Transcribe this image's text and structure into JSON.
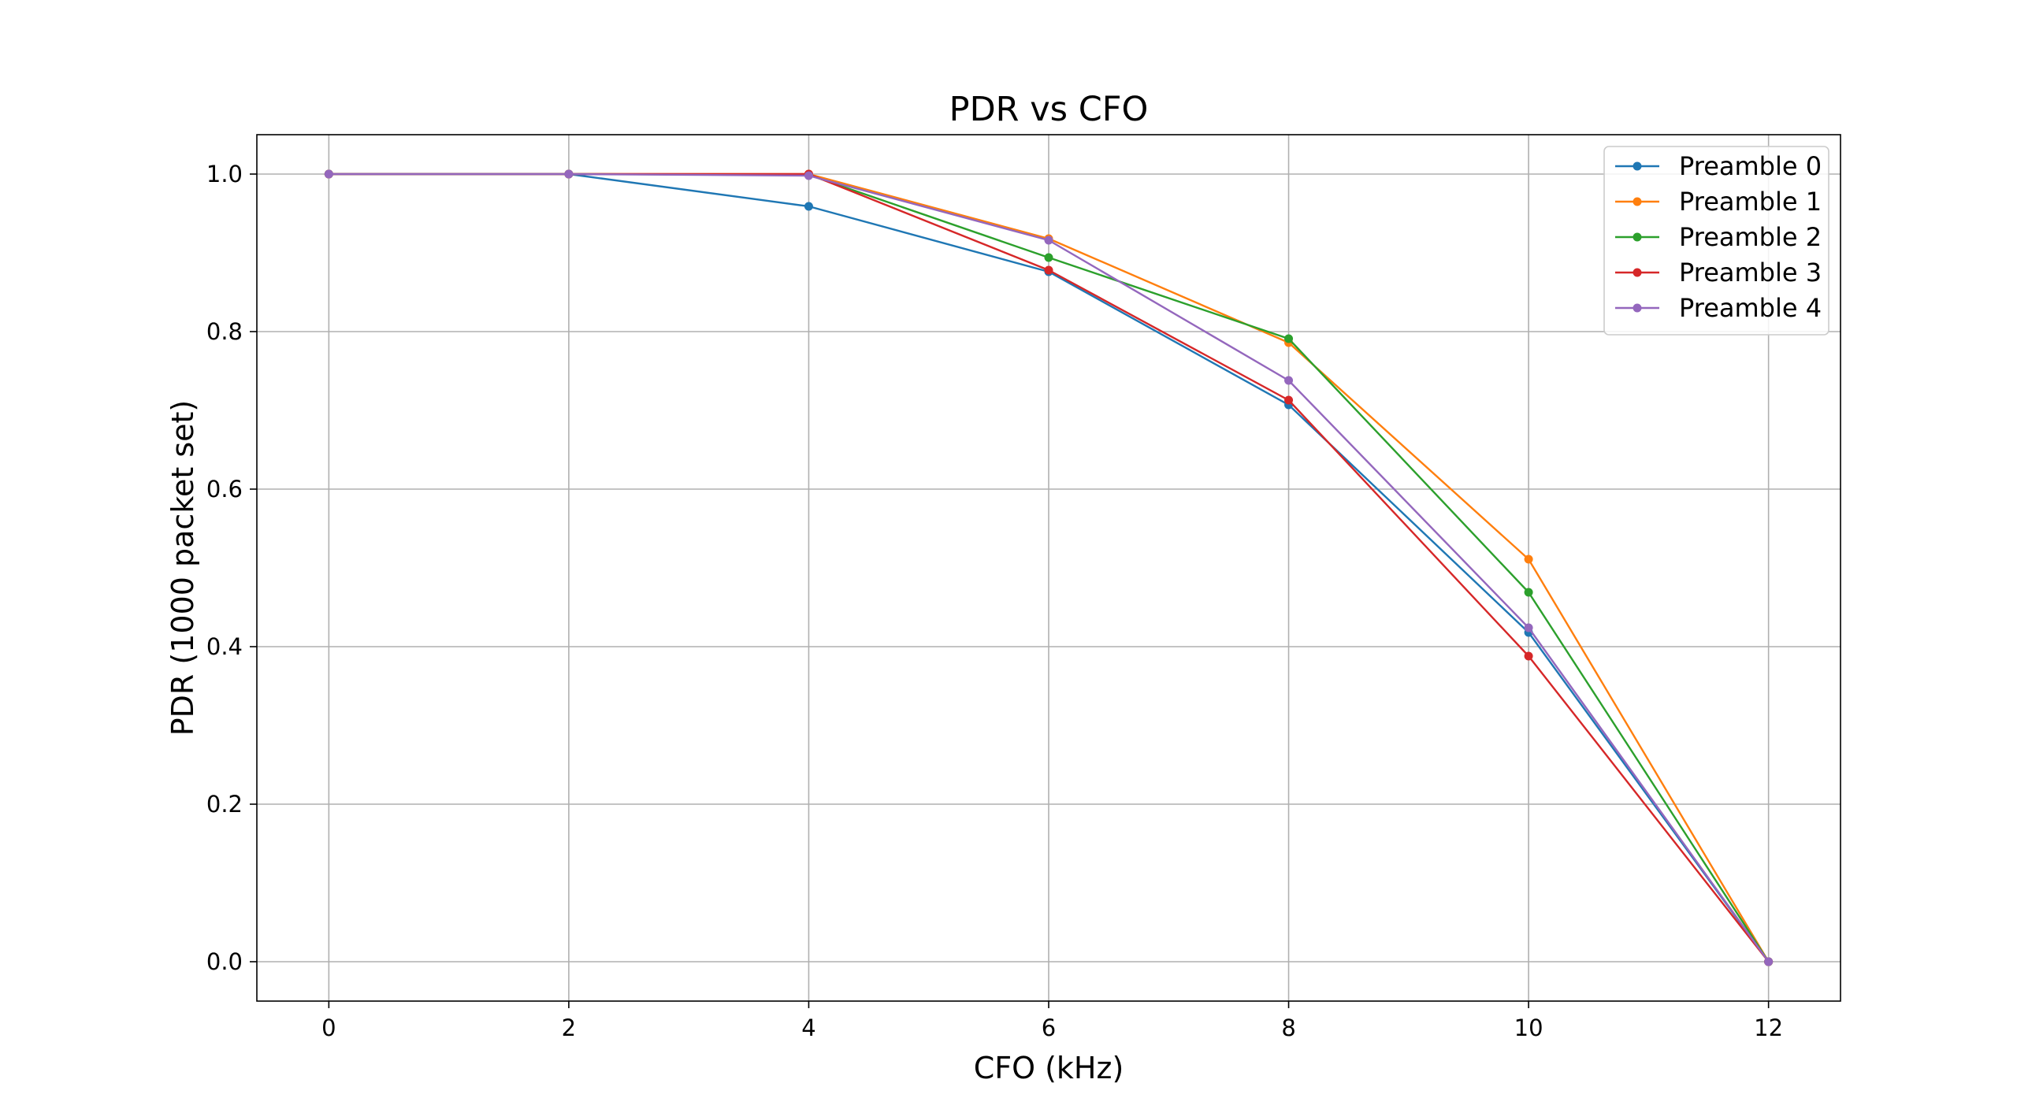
{
  "chart_data": {
    "type": "line",
    "title": "PDR vs CFO",
    "xlabel": "CFO (kHz)",
    "ylabel": "PDR (1000 packet set)",
    "x": [
      0,
      2,
      4,
      6,
      8,
      10,
      12
    ],
    "xticks": [
      "0",
      "2",
      "4",
      "6",
      "8",
      "10",
      "12"
    ],
    "yticks": [
      "0.0",
      "0.2",
      "0.4",
      "0.6",
      "0.8",
      "1.0"
    ],
    "xlim": [
      -0.6,
      12.6
    ],
    "ylim": [
      -0.05,
      1.05
    ],
    "grid": true,
    "legend_position": "top-right",
    "series": [
      {
        "name": "Preamble 0",
        "color": "#1f77b4",
        "values": [
          1.0,
          1.0,
          0.959,
          0.876,
          0.707,
          0.418,
          0.0
        ]
      },
      {
        "name": "Preamble 1",
        "color": "#ff7f0e",
        "values": [
          1.0,
          1.0,
          1.0,
          0.918,
          0.786,
          0.511,
          0.0
        ]
      },
      {
        "name": "Preamble 2",
        "color": "#2ca02c",
        "values": [
          1.0,
          1.0,
          0.999,
          0.894,
          0.791,
          0.469,
          0.0
        ]
      },
      {
        "name": "Preamble 3",
        "color": "#d62728",
        "values": [
          1.0,
          1.0,
          1.0,
          0.878,
          0.713,
          0.388,
          0.0
        ]
      },
      {
        "name": "Preamble 4",
        "color": "#9467bd",
        "values": [
          1.0,
          1.0,
          0.998,
          0.916,
          0.738,
          0.424,
          0.0
        ]
      }
    ]
  }
}
